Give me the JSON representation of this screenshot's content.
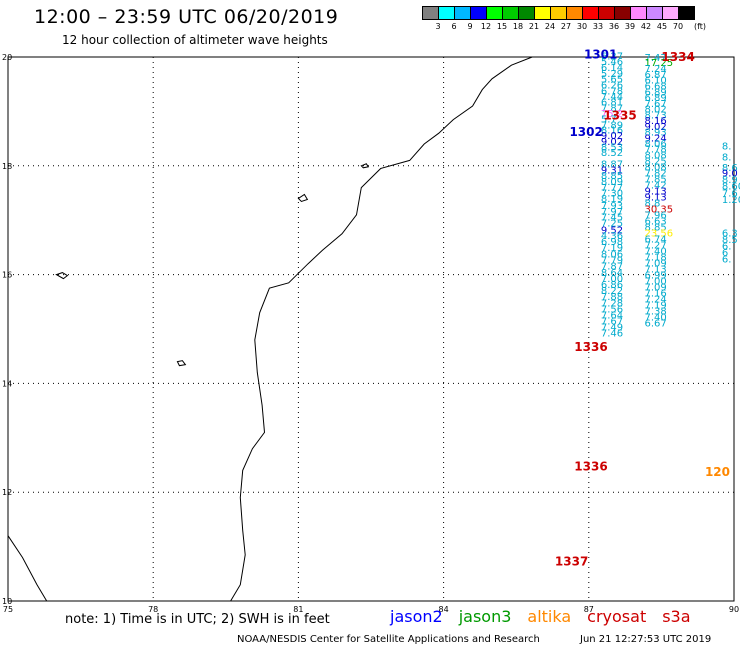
{
  "header": {
    "title": "12:00 – 23:59 UTC 06/20/2019",
    "subtitle": "12 hour collection of altimeter wave heights"
  },
  "scale": {
    "unit": "(ft)",
    "colors": [
      "#808080",
      "#00ffff",
      "#00b8ff",
      "#0000ff",
      "#00ff00",
      "#00cc00",
      "#008800",
      "#ffff00",
      "#ffcc00",
      "#ff8800",
      "#ff0000",
      "#cc0000",
      "#880000",
      "#ff88ff",
      "#cc88ff",
      "#ffaaff",
      "#000000"
    ],
    "labels": [
      "3",
      "6",
      "9",
      "12",
      "15",
      "18",
      "21",
      "24",
      "27",
      "30",
      "33",
      "36",
      "39",
      "42",
      "45",
      "70"
    ]
  },
  "map": {
    "lon_ticks": [
      "75",
      "78",
      "81",
      "84",
      "87",
      "90"
    ],
    "lat_ticks": [
      "20",
      "18",
      "16",
      "14",
      "12",
      "10"
    ],
    "lon_range": [
      75,
      90
    ],
    "lat_range": [
      10,
      20
    ]
  },
  "tracks": [
    {
      "label": "1301",
      "color": "#0000cc",
      "lon": 86.9,
      "lat": 19.97
    },
    {
      "label": "1334",
      "color": "#cc0000",
      "lon": 88.5,
      "lat": 19.93
    },
    {
      "label": "1335",
      "color": "#cc0000",
      "lon": 87.3,
      "lat": 18.85
    },
    {
      "label": "1302",
      "color": "#0000cc",
      "lon": 86.6,
      "lat": 18.55
    },
    {
      "label": "1336",
      "color": "#cc0000",
      "lon": 86.7,
      "lat": 14.6
    },
    {
      "label": "1336",
      "color": "#cc0000",
      "lon": 86.7,
      "lat": 12.4
    },
    {
      "label": "1337",
      "color": "#cc0000",
      "lon": 86.3,
      "lat": 10.65
    },
    {
      "label": "120",
      "color": "#ff8800",
      "lon": 89.4,
      "lat": 12.3
    }
  ],
  "track_a": [
    {
      "v": "6.27",
      "lat": 19.95
    },
    {
      "v": "5.46",
      "lat": 19.85
    },
    {
      "v": "6.14",
      "lat": 19.74
    },
    {
      "v": "5.29",
      "lat": 19.63
    },
    {
      "v": "5.65",
      "lat": 19.53
    },
    {
      "v": "6.26",
      "lat": 19.42
    },
    {
      "v": "6.78",
      "lat": 19.31
    },
    {
      "v": "7.44",
      "lat": 19.21
    },
    {
      "v": "6.81",
      "lat": 19.11
    },
    {
      "v": "7.87",
      "lat": 19.0
    },
    {
      "v": "75.2",
      "lat": 18.9,
      "c": "#ff66ff"
    },
    {
      "v": "5.7",
      "lat": 18.8
    },
    {
      "v": "7.89",
      "lat": 18.69
    },
    {
      "v": "8.16",
      "lat": 18.59
    },
    {
      "v": "9.02",
      "lat": 18.49,
      "c": "#0000cc"
    },
    {
      "v": "9.02",
      "lat": 18.38,
      "c": "#0000cc"
    },
    {
      "v": "8.53",
      "lat": 18.28
    },
    {
      "v": "8.52",
      "lat": 18.18
    },
    {
      "v": "8.87",
      "lat": 17.97
    },
    {
      "v": "9.31",
      "lat": 17.86,
      "c": "#0000cc"
    },
    {
      "v": "8.85",
      "lat": 17.76
    },
    {
      "v": "8.09",
      "lat": 17.65
    },
    {
      "v": "7.77",
      "lat": 17.54
    },
    {
      "v": "7.30",
      "lat": 17.44
    },
    {
      "v": "8.19",
      "lat": 17.33
    },
    {
      "v": "7.93",
      "lat": 17.21
    },
    {
      "v": "7.97",
      "lat": 17.1
    },
    {
      "v": "7.45",
      "lat": 16.99
    },
    {
      "v": "7.25",
      "lat": 16.88
    },
    {
      "v": "9.52",
      "lat": 16.76,
      "c": "#0000cc"
    },
    {
      "v": "4.36",
      "lat": 16.65
    },
    {
      "v": "6.98",
      "lat": 16.54
    },
    {
      "v": "7.19",
      "lat": 16.43
    },
    {
      "v": "8.06",
      "lat": 16.31
    },
    {
      "v": "7.79",
      "lat": 16.2
    },
    {
      "v": "7.87",
      "lat": 16.09
    },
    {
      "v": "8.64",
      "lat": 15.97
    },
    {
      "v": "7.00",
      "lat": 15.86
    },
    {
      "v": "6.86",
      "lat": 15.75
    },
    {
      "v": "8.22",
      "lat": 15.64
    },
    {
      "v": "7.88",
      "lat": 15.53
    },
    {
      "v": "7.28",
      "lat": 15.41
    },
    {
      "v": "7.56",
      "lat": 15.3
    },
    {
      "v": "7.64",
      "lat": 15.19
    },
    {
      "v": "7.67",
      "lat": 15.08
    },
    {
      "v": "7.49",
      "lat": 14.97
    },
    {
      "v": "7.46",
      "lat": 14.86
    }
  ],
  "track_b": [
    {
      "v": "7.47",
      "lat": 19.93
    },
    {
      "v": "17.25",
      "lat": 19.83,
      "c": "#00aa00"
    },
    {
      "v": "7.24",
      "lat": 19.72
    },
    {
      "v": "6.87",
      "lat": 19.61
    },
    {
      "v": "6.10",
      "lat": 19.51
    },
    {
      "v": "6.68",
      "lat": 19.4
    },
    {
      "v": "6.89",
      "lat": 19.29
    },
    {
      "v": "6.89",
      "lat": 19.19
    },
    {
      "v": "7.67",
      "lat": 19.08
    },
    {
      "v": "8.02",
      "lat": 18.98
    },
    {
      "v": "8.73",
      "lat": 18.87
    },
    {
      "v": "8.16",
      "lat": 18.77,
      "c": "#0000cc"
    },
    {
      "v": "9.02",
      "lat": 18.66,
      "c": "#0000cc"
    },
    {
      "v": "8.93",
      "lat": 18.56
    },
    {
      "v": "9.24",
      "lat": 18.45,
      "c": "#0000cc"
    },
    {
      "v": "8.06",
      "lat": 18.35
    },
    {
      "v": "7.78",
      "lat": 18.24
    },
    {
      "v": "8.08",
      "lat": 18.13
    },
    {
      "v": "8.25",
      "lat": 18.02
    },
    {
      "v": "8.08",
      "lat": 17.91
    },
    {
      "v": "7.82",
      "lat": 17.8
    },
    {
      "v": "7.85",
      "lat": 17.69
    },
    {
      "v": "7.42",
      "lat": 17.58
    },
    {
      "v": "9.13",
      "lat": 17.47,
      "c": "#0000cc"
    },
    {
      "v": "9.13",
      "lat": 17.36,
      "c": "#0000cc"
    },
    {
      "v": "8.8",
      "lat": 17.25
    },
    {
      "v": "30.35",
      "lat": 17.14,
      "c": "#cc0000"
    },
    {
      "v": "7.96",
      "lat": 17.03
    },
    {
      "v": "6.63",
      "lat": 16.92
    },
    {
      "v": "8.85",
      "lat": 16.81
    },
    {
      "v": "23.56",
      "lat": 16.7,
      "c": "#ffee00"
    },
    {
      "v": "6.74",
      "lat": 16.59
    },
    {
      "v": "7.27",
      "lat": 16.48
    },
    {
      "v": "7.40",
      "lat": 16.37
    },
    {
      "v": "7.18",
      "lat": 16.26
    },
    {
      "v": "7.09",
      "lat": 16.15
    },
    {
      "v": "7.13",
      "lat": 16.04
    },
    {
      "v": "6.99",
      "lat": 15.93
    },
    {
      "v": "7.00",
      "lat": 15.82
    },
    {
      "v": "7.09",
      "lat": 15.71
    },
    {
      "v": "7.16",
      "lat": 15.6
    },
    {
      "v": "7.24",
      "lat": 15.49
    },
    {
      "v": "7.19",
      "lat": 15.38
    },
    {
      "v": "7.38",
      "lat": 15.27
    },
    {
      "v": "7.40",
      "lat": 15.16
    },
    {
      "v": "6.67",
      "lat": 15.05
    }
  ],
  "track_c": [
    {
      "v": "8.",
      "lat": 18.3
    },
    {
      "v": "8.",
      "lat": 18.1
    },
    {
      "v": "8.6",
      "lat": 17.9
    },
    {
      "v": "9.0",
      "lat": 17.8,
      "c": "#0000cc"
    },
    {
      "v": "8.9",
      "lat": 17.68
    },
    {
      "v": "8.60",
      "lat": 17.56
    },
    {
      "v": "7.6",
      "lat": 17.44
    },
    {
      "v": "1.20",
      "lat": 17.32
    },
    {
      "v": "6.3",
      "lat": 16.7
    },
    {
      "v": "8.5",
      "lat": 16.58
    },
    {
      "v": "6.",
      "lat": 16.46
    },
    {
      "v": "6",
      "lat": 16.34
    },
    {
      "v": "6.",
      "lat": 16.22
    }
  ],
  "footer": {
    "note": "note: 1) Time is in UTC; 2) SWH is in feet",
    "sats": [
      {
        "name": "jason2",
        "color": "#0000ff"
      },
      {
        "name": "jason3",
        "color": "#009900"
      },
      {
        "name": "altika",
        "color": "#ff8800"
      },
      {
        "name": "cryosat",
        "color": "#cc0000"
      },
      {
        "name": "s3a",
        "color": "#cc0000"
      }
    ],
    "credit": "NOAA/NESDIS Center for Satellite Applications and Research",
    "timestamp": "Jun 21 12:27:53 UTC 2019"
  }
}
